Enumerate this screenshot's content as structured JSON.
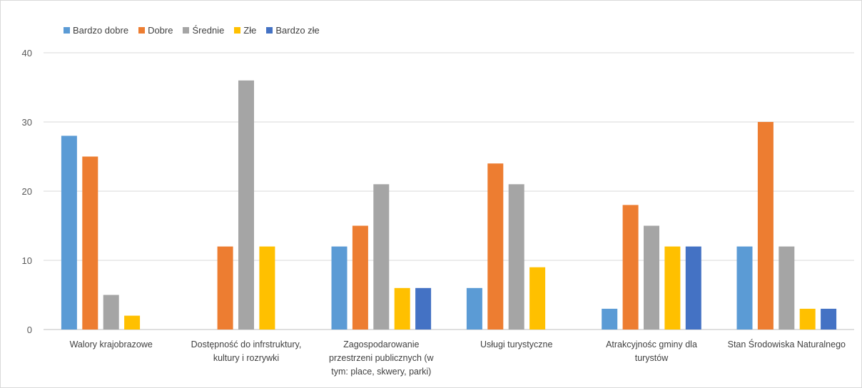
{
  "chart_data": {
    "type": "bar",
    "title": "",
    "xlabel": "",
    "ylabel": "",
    "ylim": [
      0,
      40
    ],
    "yticks": [
      0,
      10,
      20,
      30,
      40
    ],
    "grid": true,
    "legend_position": "top-left",
    "categories": [
      [
        "Walory krajobrazowe"
      ],
      [
        "Dostępność do infrstruktury,",
        "kultury i rozrywki"
      ],
      [
        "Zagospodarowanie",
        "przestrzeni publicznych (w",
        "tym: place, skwery, parki)"
      ],
      [
        "Usługi turystyczne"
      ],
      [
        "Atrakcyjnośc gminy dla",
        "turystów"
      ],
      [
        "Stan Środowiska Naturalnego"
      ]
    ],
    "series": [
      {
        "name": "Bardzo dobre",
        "color": "#5b9bd5",
        "values": [
          28,
          0,
          12,
          6,
          3,
          12
        ]
      },
      {
        "name": "Dobre",
        "color": "#ed7d31",
        "values": [
          25,
          12,
          15,
          24,
          18,
          30
        ]
      },
      {
        "name": "Średnie",
        "color": "#a5a5a5",
        "values": [
          5,
          36,
          21,
          21,
          15,
          12
        ]
      },
      {
        "name": "Złe",
        "color": "#ffc000",
        "values": [
          2,
          12,
          6,
          9,
          12,
          3
        ]
      },
      {
        "name": "Bardzo złe",
        "color": "#4472c4",
        "values": [
          0,
          0,
          6,
          0,
          12,
          3
        ]
      }
    ]
  }
}
